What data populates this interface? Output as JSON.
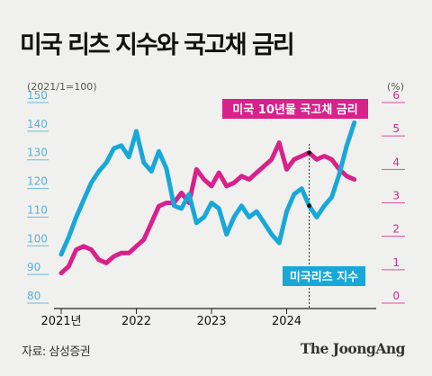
{
  "title": "미국 리츠 지수와 국고채 금리",
  "source": "자료: 삼성증권",
  "brand": "The JoongAng",
  "colors": {
    "reit": "#18a8d8",
    "treasury": "#d8218b",
    "left_axis": "#5ab0d3",
    "right_axis": "#d12c8a",
    "background": "#f0f0ee"
  },
  "chart_data": {
    "type": "line",
    "title": "미국 리츠 지수와 국고채 금리",
    "left_axis": {
      "unit": "(2021/1=100)",
      "ylim": [
        80,
        150
      ],
      "ticks": [
        80,
        90,
        100,
        110,
        120,
        130,
        140,
        150
      ]
    },
    "right_axis": {
      "unit": "(%)",
      "ylim": [
        0,
        6
      ],
      "ticks": [
        0,
        1,
        2,
        3,
        4,
        5,
        6
      ]
    },
    "x_ticks": [
      "2021년",
      "2022",
      "2023",
      "2024"
    ],
    "x_domain": [
      2021.0,
      2025.0
    ],
    "series": [
      {
        "name": "미국리츠 지수",
        "axis": "left",
        "color": "#18a8d8",
        "x": [
          2021.0,
          2021.1,
          2021.2,
          2021.3,
          2021.4,
          2021.5,
          2021.6,
          2021.7,
          2021.8,
          2021.9,
          2022.0,
          2022.1,
          2022.2,
          2022.3,
          2022.4,
          2022.5,
          2022.6,
          2022.7,
          2022.8,
          2022.9,
          2023.0,
          2023.1,
          2023.2,
          2023.3,
          2023.4,
          2023.5,
          2023.6,
          2023.7,
          2023.8,
          2023.9,
          2024.0,
          2024.1,
          2024.2,
          2024.3,
          2024.4,
          2024.5,
          2024.6,
          2024.7,
          2024.8,
          2024.9
        ],
        "y": [
          97,
          103,
          110,
          116,
          122,
          126,
          129,
          134,
          135,
          131,
          140,
          129,
          126,
          133,
          127,
          114,
          113,
          118,
          108,
          110,
          115,
          113,
          104,
          110,
          114,
          110,
          112,
          108,
          104,
          101,
          112,
          118,
          120,
          114,
          110,
          114,
          117,
          125,
          135,
          143
        ]
      },
      {
        "name": "미국 10년물 국고채 금리",
        "axis": "right",
        "color": "#d8218b",
        "x": [
          2021.0,
          2021.1,
          2021.2,
          2021.3,
          2021.4,
          2021.5,
          2021.6,
          2021.7,
          2021.8,
          2021.9,
          2022.0,
          2022.1,
          2022.2,
          2022.3,
          2022.4,
          2022.5,
          2022.6,
          2022.7,
          2022.8,
          2022.9,
          2023.0,
          2023.1,
          2023.2,
          2023.3,
          2023.4,
          2023.5,
          2023.6,
          2023.7,
          2023.8,
          2023.9,
          2024.0,
          2024.1,
          2024.2,
          2024.3,
          2024.4,
          2024.5,
          2024.6,
          2024.7,
          2024.8,
          2024.9
        ],
        "y": [
          0.9,
          1.1,
          1.6,
          1.7,
          1.6,
          1.3,
          1.2,
          1.4,
          1.5,
          1.5,
          1.7,
          1.9,
          2.4,
          2.9,
          3.0,
          3.0,
          3.3,
          3.0,
          4.0,
          3.7,
          3.5,
          3.9,
          3.5,
          3.6,
          3.8,
          3.7,
          3.9,
          4.1,
          4.3,
          4.8,
          4.0,
          4.3,
          4.4,
          4.5,
          4.3,
          4.4,
          4.3,
          4.0,
          3.8,
          3.7
        ]
      }
    ],
    "annotation_x": 2024.3
  }
}
